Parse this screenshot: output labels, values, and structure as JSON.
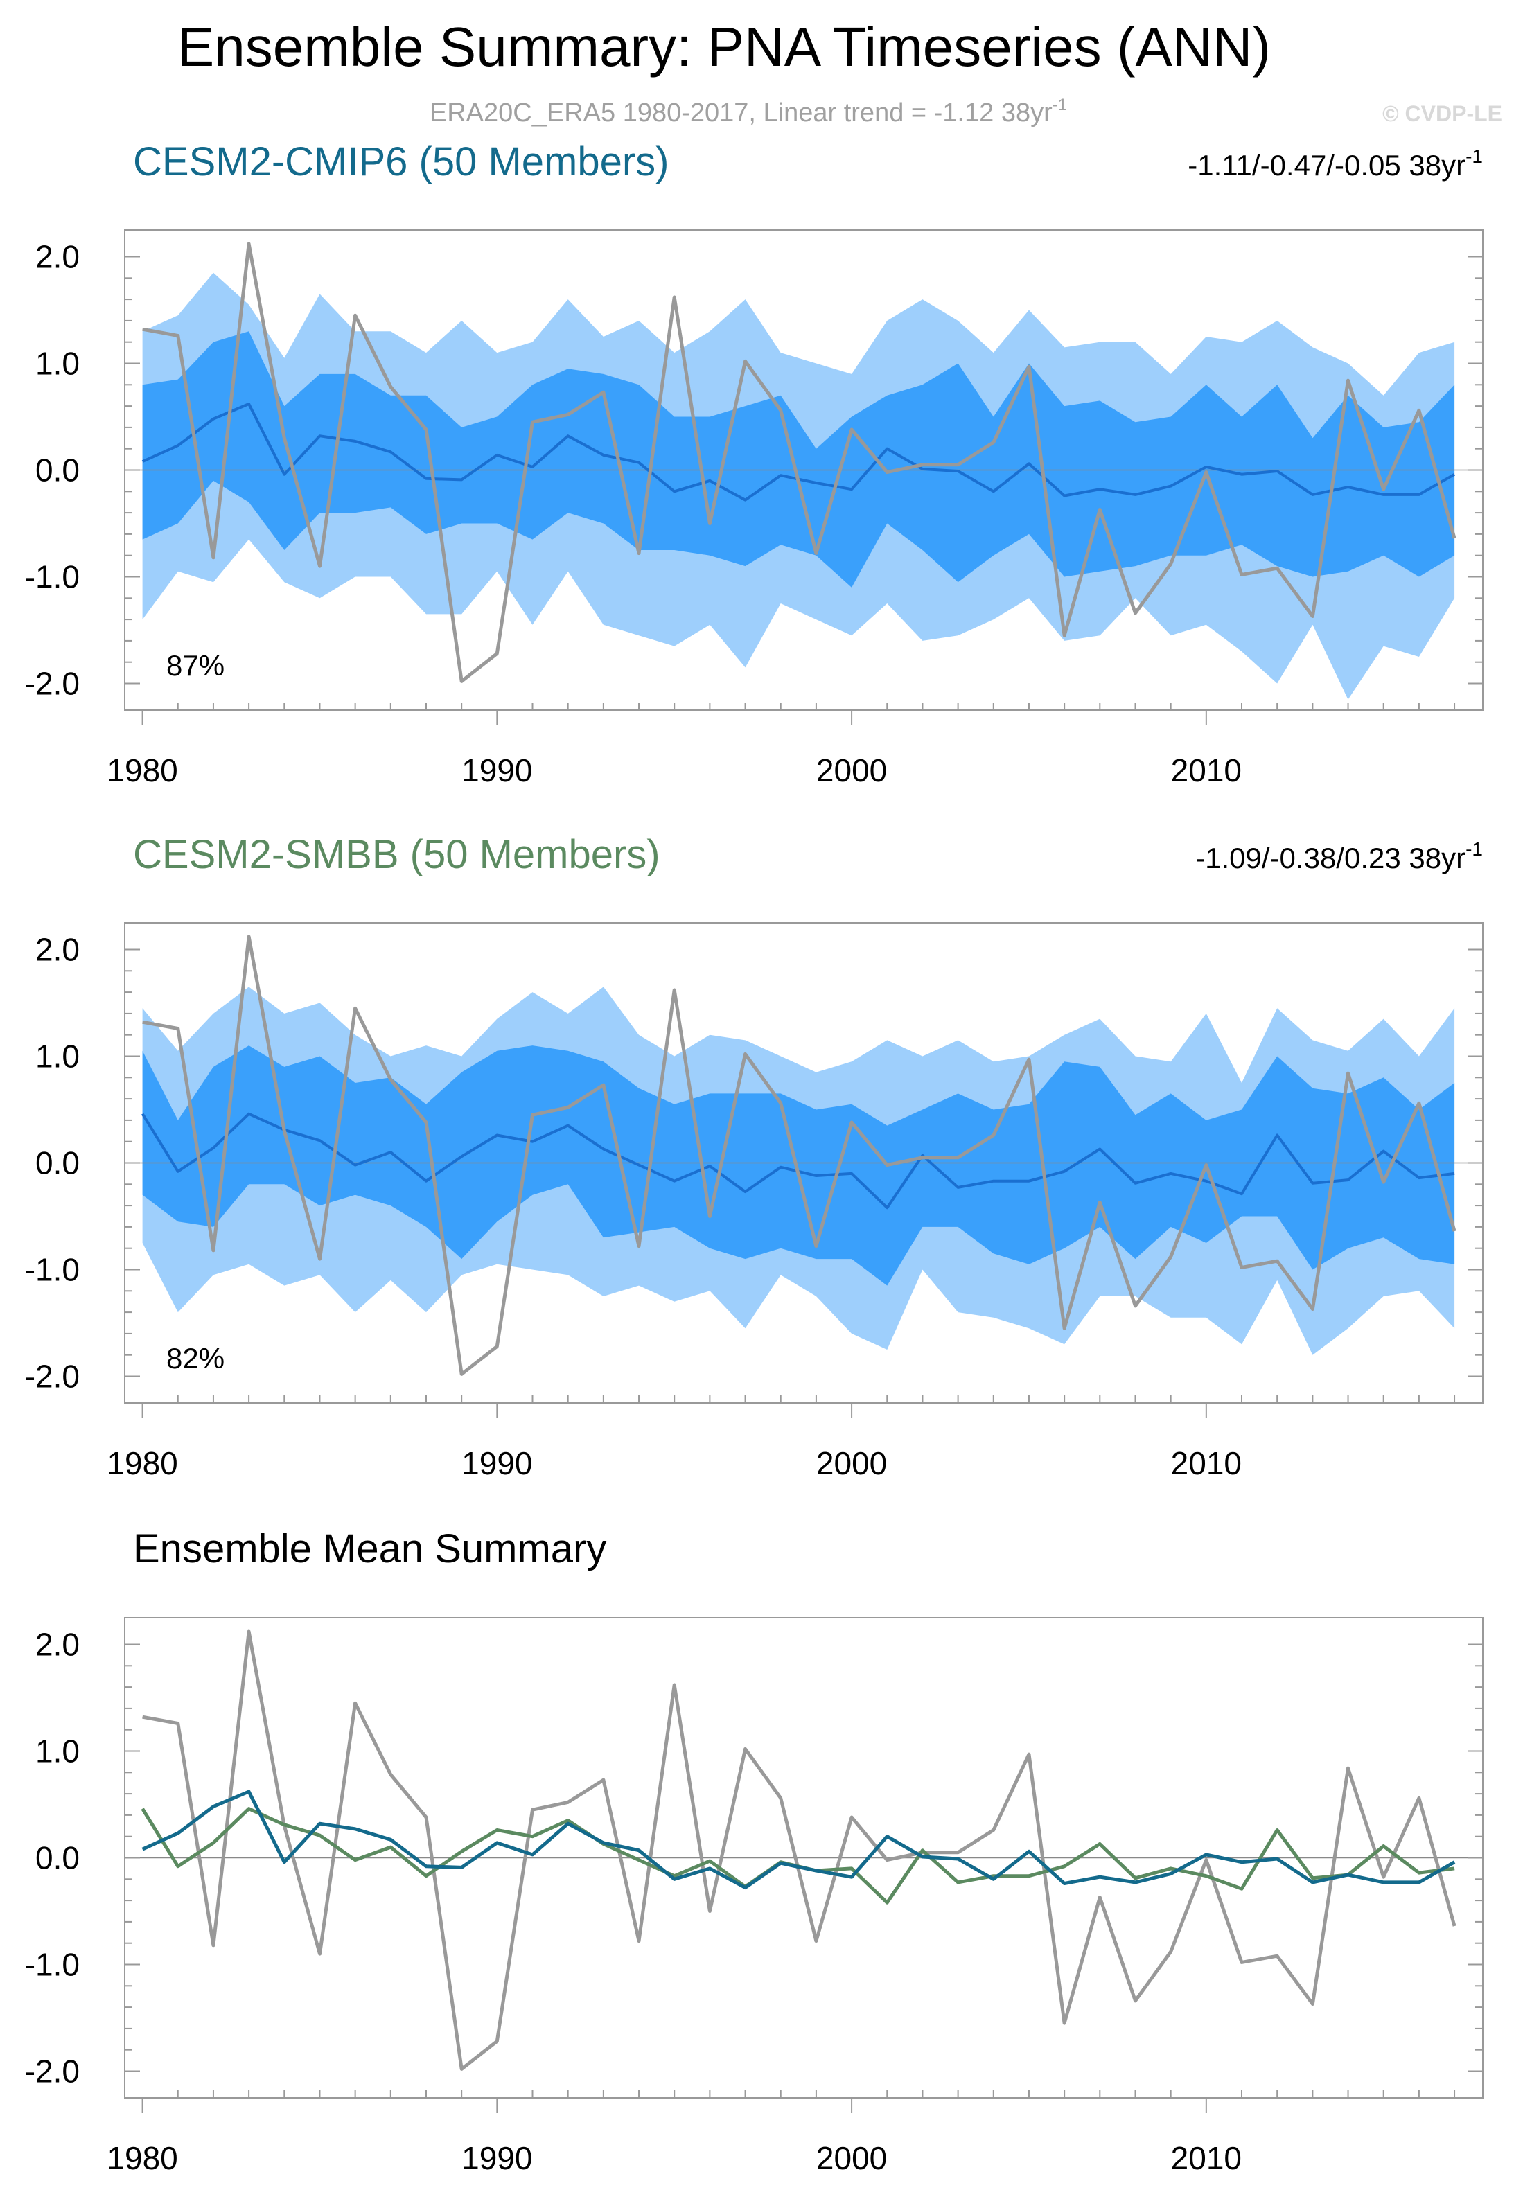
{
  "page": {
    "title": "Ensemble Summary: PNA Timeseries (ANN)",
    "subtitle_main": "ERA20C_ERA5 1980-2017, Linear trend = -1.12 38yr",
    "subtitle_sup": "-1",
    "watermark": "© CVDP-LE"
  },
  "colors": {
    "outer_band": "#9ecffc",
    "inner_band": "#3aa0fb",
    "ens_mean_line": "#1a6fd0",
    "obs_line": "#999999",
    "cmip6": "#136a8c",
    "smbb": "#5b8a60",
    "zero_line": "#888888"
  },
  "chart_data": [
    {
      "id": "p1",
      "type": "line",
      "title": "CESM2-CMIP6 (50 Members)",
      "trend_main": "-1.11/-0.47/-0.05 38yr",
      "trend_sup": "-1",
      "percent": "87%",
      "xlim": [
        1979.5,
        2017.8
      ],
      "ylim": [
        -2.25,
        2.25
      ],
      "xticks": [
        "1980",
        "1990",
        "2000",
        "2010"
      ],
      "yticks": [
        "2.0",
        "1.0",
        "0.0",
        "-1.0",
        "-2.0"
      ],
      "x": [
        1980,
        1981,
        1982,
        1983,
        1984,
        1985,
        1986,
        1987,
        1988,
        1989,
        1990,
        1991,
        1992,
        1993,
        1994,
        1995,
        1996,
        1997,
        1998,
        1999,
        2000,
        2001,
        2002,
        2003,
        2004,
        2005,
        2006,
        2007,
        2008,
        2009,
        2010,
        2011,
        2012,
        2013,
        2014,
        2015,
        2016,
        2017
      ],
      "outer_upper": [
        1.3,
        1.45,
        1.85,
        1.55,
        1.05,
        1.65,
        1.3,
        1.3,
        1.1,
        1.4,
        1.1,
        1.2,
        1.6,
        1.25,
        1.4,
        1.1,
        1.3,
        1.6,
        1.1,
        1.0,
        0.9,
        1.4,
        1.6,
        1.4,
        1.1,
        1.5,
        1.15,
        1.2,
        1.2,
        0.9,
        1.25,
        1.2,
        1.4,
        1.15,
        1.0,
        0.7,
        1.1,
        1.2
      ],
      "inner_upper": [
        0.8,
        0.85,
        1.2,
        1.3,
        0.6,
        0.9,
        0.9,
        0.7,
        0.7,
        0.4,
        0.5,
        0.8,
        0.95,
        0.9,
        0.8,
        0.5,
        0.5,
        0.6,
        0.7,
        0.2,
        0.5,
        0.7,
        0.8,
        1.0,
        0.5,
        1.0,
        0.6,
        0.65,
        0.45,
        0.5,
        0.8,
        0.5,
        0.8,
        0.3,
        0.7,
        0.4,
        0.45,
        0.8
      ],
      "inner_lower": [
        -0.65,
        -0.5,
        -0.1,
        -0.3,
        -0.75,
        -0.4,
        -0.4,
        -0.35,
        -0.6,
        -0.5,
        -0.5,
        -0.65,
        -0.4,
        -0.5,
        -0.75,
        -0.75,
        -0.8,
        -0.9,
        -0.7,
        -0.8,
        -1.1,
        -0.5,
        -0.75,
        -1.05,
        -0.8,
        -0.6,
        -1.0,
        -0.95,
        -0.9,
        -0.8,
        -0.8,
        -0.7,
        -0.9,
        -1.0,
        -0.95,
        -0.8,
        -1.0,
        -0.8
      ],
      "outer_lower": [
        -1.4,
        -0.95,
        -1.05,
        -0.65,
        -1.05,
        -1.2,
        -1.0,
        -1.0,
        -1.35,
        -1.35,
        -0.95,
        -1.45,
        -0.95,
        -1.45,
        -1.55,
        -1.65,
        -1.45,
        -1.85,
        -1.25,
        -1.4,
        -1.55,
        -1.25,
        -1.6,
        -1.55,
        -1.4,
        -1.2,
        -1.6,
        -1.55,
        -1.2,
        -1.55,
        -1.45,
        -1.7,
        -2.0,
        -1.45,
        -2.15,
        -1.65,
        -1.75,
        -1.2
      ],
      "ens_mean": [
        0.08,
        0.23,
        0.48,
        0.62,
        -0.04,
        0.32,
        0.27,
        0.17,
        -0.08,
        -0.09,
        0.14,
        0.03,
        0.32,
        0.14,
        0.07,
        -0.2,
        -0.1,
        -0.28,
        -0.05,
        -0.12,
        -0.18,
        0.2,
        0.01,
        -0.01,
        -0.2,
        0.06,
        -0.24,
        -0.18,
        -0.23,
        -0.15,
        0.03,
        -0.04,
        -0.01,
        -0.23,
        -0.16,
        -0.23,
        -0.23,
        -0.04
      ],
      "obs": [
        1.32,
        1.26,
        -0.82,
        2.12,
        0.3,
        -0.9,
        1.45,
        0.78,
        0.38,
        -1.98,
        -1.72,
        0.45,
        0.52,
        0.73,
        -0.78,
        1.62,
        -0.5,
        1.02,
        0.56,
        -0.78,
        0.38,
        -0.02,
        0.05,
        0.05,
        0.26,
        0.97,
        -1.55,
        -0.37,
        -1.34,
        -0.88,
        -0.02,
        -0.98,
        -0.92,
        -1.37,
        0.84,
        -0.18,
        0.56,
        -0.64
      ]
    },
    {
      "id": "p2",
      "type": "line",
      "title": "CESM2-SMBB (50 Members)",
      "trend_main": "-1.09/-0.38/0.23 38yr",
      "trend_sup": "-1",
      "percent": "82%",
      "xlim": [
        1979.5,
        2017.8
      ],
      "ylim": [
        -2.25,
        2.25
      ],
      "xticks": [
        "1980",
        "1990",
        "2000",
        "2010"
      ],
      "yticks": [
        "2.0",
        "1.0",
        "0.0",
        "-1.0",
        "-2.0"
      ],
      "x": [
        1980,
        1981,
        1982,
        1983,
        1984,
        1985,
        1986,
        1987,
        1988,
        1989,
        1990,
        1991,
        1992,
        1993,
        1994,
        1995,
        1996,
        1997,
        1998,
        1999,
        2000,
        2001,
        2002,
        2003,
        2004,
        2005,
        2006,
        2007,
        2008,
        2009,
        2010,
        2011,
        2012,
        2013,
        2014,
        2015,
        2016,
        2017
      ],
      "outer_upper": [
        1.45,
        1.05,
        1.4,
        1.65,
        1.4,
        1.5,
        1.2,
        1.0,
        1.1,
        1.0,
        1.35,
        1.6,
        1.4,
        1.65,
        1.2,
        1.0,
        1.2,
        1.15,
        1.0,
        0.85,
        0.95,
        1.15,
        1.0,
        1.15,
        0.95,
        1.0,
        1.2,
        1.35,
        1.0,
        0.95,
        1.4,
        0.75,
        1.45,
        1.15,
        1.05,
        1.35,
        1.0,
        1.45
      ],
      "inner_upper": [
        1.05,
        0.4,
        0.9,
        1.1,
        0.9,
        1.0,
        0.75,
        0.8,
        0.55,
        0.85,
        1.05,
        1.1,
        1.05,
        0.95,
        0.7,
        0.55,
        0.65,
        0.65,
        0.65,
        0.5,
        0.55,
        0.35,
        0.5,
        0.65,
        0.5,
        0.55,
        0.95,
        0.9,
        0.45,
        0.65,
        0.4,
        0.5,
        1.0,
        0.7,
        0.65,
        0.8,
        0.5,
        0.75
      ],
      "inner_lower": [
        -0.3,
        -0.55,
        -0.6,
        -0.2,
        -0.2,
        -0.4,
        -0.3,
        -0.4,
        -0.6,
        -0.9,
        -0.55,
        -0.3,
        -0.2,
        -0.7,
        -0.65,
        -0.6,
        -0.8,
        -0.9,
        -0.8,
        -0.9,
        -0.9,
        -1.15,
        -0.6,
        -0.6,
        -0.85,
        -0.95,
        -0.8,
        -0.6,
        -0.9,
        -0.6,
        -0.75,
        -0.5,
        -0.5,
        -1.0,
        -0.8,
        -0.7,
        -0.9,
        -0.95
      ],
      "outer_lower": [
        -0.75,
        -1.4,
        -1.05,
        -0.95,
        -1.15,
        -1.05,
        -1.4,
        -1.1,
        -1.4,
        -1.05,
        -0.95,
        -1.0,
        -1.05,
        -1.25,
        -1.15,
        -1.3,
        -1.2,
        -1.55,
        -1.05,
        -1.25,
        -1.6,
        -1.75,
        -1.0,
        -1.4,
        -1.45,
        -1.55,
        -1.7,
        -1.25,
        -1.25,
        -1.45,
        -1.45,
        -1.7,
        -1.1,
        -1.8,
        -1.55,
        -1.25,
        -1.2,
        -1.55
      ],
      "ens_mean": [
        0.46,
        -0.08,
        0.14,
        0.46,
        0.31,
        0.21,
        -0.02,
        0.1,
        -0.17,
        0.06,
        0.26,
        0.2,
        0.35,
        0.13,
        -0.02,
        -0.17,
        -0.03,
        -0.27,
        -0.04,
        -0.12,
        -0.1,
        -0.42,
        0.07,
        -0.23,
        -0.17,
        -0.17,
        -0.08,
        0.13,
        -0.19,
        -0.1,
        -0.17,
        -0.29,
        0.26,
        -0.19,
        -0.16,
        0.11,
        -0.14,
        -0.1
      ],
      "obs": [
        1.32,
        1.26,
        -0.82,
        2.12,
        0.3,
        -0.9,
        1.45,
        0.78,
        0.38,
        -1.98,
        -1.72,
        0.45,
        0.52,
        0.73,
        -0.78,
        1.62,
        -0.5,
        1.02,
        0.56,
        -0.78,
        0.38,
        -0.02,
        0.05,
        0.05,
        0.26,
        0.97,
        -1.55,
        -0.37,
        -1.34,
        -0.88,
        -0.02,
        -0.98,
        -0.92,
        -1.37,
        0.84,
        -0.18,
        0.56,
        -0.64
      ]
    },
    {
      "id": "p3",
      "type": "line",
      "title": "Ensemble Mean Summary",
      "xlim": [
        1979.5,
        2017.8
      ],
      "ylim": [
        -2.25,
        2.25
      ],
      "xticks": [
        "1980",
        "1990",
        "2000",
        "2010"
      ],
      "yticks": [
        "2.0",
        "1.0",
        "0.0",
        "-1.0",
        "-2.0"
      ],
      "x": [
        1980,
        1981,
        1982,
        1983,
        1984,
        1985,
        1986,
        1987,
        1988,
        1989,
        1990,
        1991,
        1992,
        1993,
        1994,
        1995,
        1996,
        1997,
        1998,
        1999,
        2000,
        2001,
        2002,
        2003,
        2004,
        2005,
        2006,
        2007,
        2008,
        2009,
        2010,
        2011,
        2012,
        2013,
        2014,
        2015,
        2016,
        2017
      ],
      "series": [
        {
          "name": "ERA20C_ERA5",
          "color": "#999999",
          "values": [
            1.32,
            1.26,
            -0.82,
            2.12,
            0.3,
            -0.9,
            1.45,
            0.78,
            0.38,
            -1.98,
            -1.72,
            0.45,
            0.52,
            0.73,
            -0.78,
            1.62,
            -0.5,
            1.02,
            0.56,
            -0.78,
            0.38,
            -0.02,
            0.05,
            0.05,
            0.26,
            0.97,
            -1.55,
            -0.37,
            -1.34,
            -0.88,
            -0.02,
            -0.98,
            -0.92,
            -1.37,
            0.84,
            -0.18,
            0.56,
            -0.64
          ]
        },
        {
          "name": "CESM2-SMBB",
          "color": "#5b8a60",
          "values": [
            0.46,
            -0.08,
            0.14,
            0.46,
            0.31,
            0.21,
            -0.02,
            0.1,
            -0.17,
            0.06,
            0.26,
            0.2,
            0.35,
            0.13,
            -0.02,
            -0.17,
            -0.03,
            -0.27,
            -0.04,
            -0.12,
            -0.1,
            -0.42,
            0.07,
            -0.23,
            -0.17,
            -0.17,
            -0.08,
            0.13,
            -0.19,
            -0.1,
            -0.17,
            -0.29,
            0.26,
            -0.19,
            -0.16,
            0.11,
            -0.14,
            -0.1
          ]
        },
        {
          "name": "CESM2-CMIP6",
          "color": "#136a8c",
          "values": [
            0.08,
            0.23,
            0.48,
            0.62,
            -0.04,
            0.32,
            0.27,
            0.17,
            -0.08,
            -0.09,
            0.14,
            0.03,
            0.32,
            0.14,
            0.07,
            -0.2,
            -0.1,
            -0.28,
            -0.05,
            -0.12,
            -0.18,
            0.2,
            0.01,
            -0.01,
            -0.2,
            0.06,
            -0.24,
            -0.18,
            -0.23,
            -0.15,
            0.03,
            -0.04,
            -0.01,
            -0.23,
            -0.16,
            -0.23,
            -0.23,
            -0.04
          ]
        }
      ]
    }
  ]
}
